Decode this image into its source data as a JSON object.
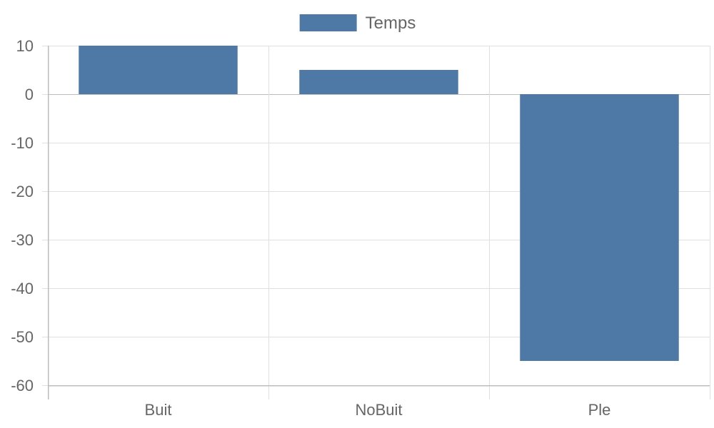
{
  "chart_data": {
    "type": "bar",
    "categories": [
      "Buit",
      "NoBuit",
      "Ple"
    ],
    "series": [
      {
        "name": "Temps",
        "values": [
          10,
          5,
          -55
        ],
        "color": "#4e79a7"
      }
    ],
    "ylim": [
      -60,
      10
    ],
    "yticks": [
      10,
      0,
      -10,
      -20,
      -30,
      -40,
      -50,
      -60
    ],
    "grid": true,
    "legend": "top-center",
    "title": "",
    "xlabel": "",
    "ylabel": ""
  }
}
